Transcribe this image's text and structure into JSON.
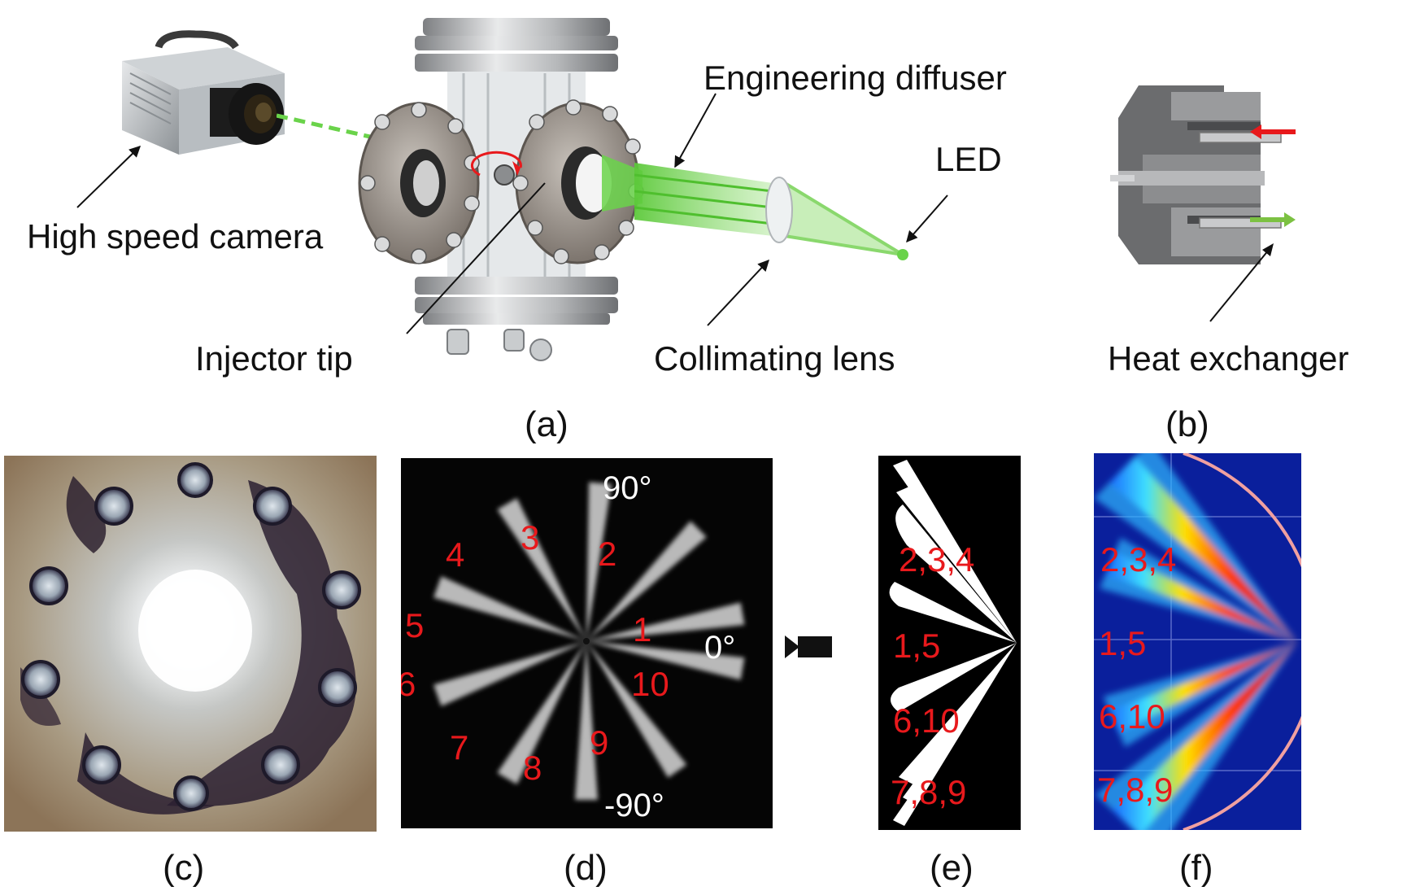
{
  "panel_a": {
    "labels": {
      "camera": "High speed camera",
      "diffuser": "Engineering diffuser",
      "led": "LED",
      "injector": "Injector tip",
      "lens": "Collimating lens"
    },
    "caption": "(a)"
  },
  "panel_b": {
    "label": "Heat exchanger",
    "caption": "(b)",
    "arrow_colors": {
      "inlet": "#e8191c",
      "outlet": "#7cc142"
    }
  },
  "panel_c": {
    "caption": "(c)"
  },
  "panel_d": {
    "caption": "(d)",
    "angles": {
      "top": "90°",
      "zero": "0°",
      "bottom": "-90°"
    },
    "plumes": [
      "1",
      "2",
      "3",
      "4",
      "5",
      "6",
      "7",
      "8",
      "9",
      "10"
    ]
  },
  "panel_e": {
    "caption": "(e)",
    "groups": [
      "2,3,4",
      "1,5",
      "6,10",
      "7,8,9"
    ]
  },
  "panel_f": {
    "caption": "(f)",
    "groups": [
      "2,3,4",
      "1,5",
      "6,10",
      "7,8,9"
    ]
  },
  "colors": {
    "number_red": "#e8191c",
    "beam_green": "#6ad34a",
    "jet_blue": "#0a1f9c"
  }
}
